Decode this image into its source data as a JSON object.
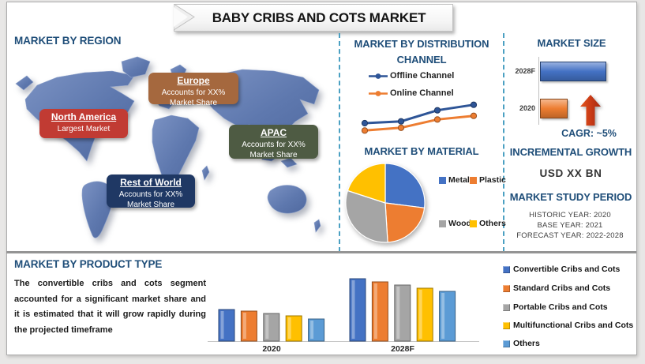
{
  "banner": {
    "title": "BABY CRIBS AND COTS MARKET"
  },
  "region": {
    "heading": "MARKET BY REGION",
    "callouts": [
      {
        "name": "North America",
        "line1": "Largest Market",
        "line2": "",
        "color": "#C13B33"
      },
      {
        "name": "Europe",
        "line1": "Accounts for XX%",
        "line2": "Market Share",
        "color": "#A5683E"
      },
      {
        "name": "APAC",
        "line1": "Accounts for XX%",
        "line2": "Market Share",
        "color": "#4E5B43"
      },
      {
        "name": "Rest of World",
        "line1": "Accounts for XX%",
        "line2": "Market Share",
        "color": "#1F3864"
      }
    ]
  },
  "sections": {
    "distribution_heading": "MARKET BY DISTRIBUTION CHANNEL",
    "material_heading": "MARKET BY MATERIAL",
    "market_size_heading": "MARKET SIZE",
    "product_type_heading": "MARKET BY PRODUCT TYPE"
  },
  "market_size": {
    "cagr": "CAGR: ~5%"
  },
  "growth": {
    "heading": "INCREMENTAL GROWTH",
    "value": "USD XX BN"
  },
  "study": {
    "heading": "MARKET STUDY PERIOD",
    "lines": [
      "HISTORIC YEAR: 2020",
      "BASE YEAR: 2021",
      "FORECAST YEAR: 2022-2028"
    ]
  },
  "product": {
    "paragraph": "The convertible cribs and cots segment accounted for a significant market share and it is estimated that it will grow rapidly during the projected timeframe"
  },
  "chart_data": [
    {
      "id": "distribution-line",
      "type": "line",
      "title": "MARKET BY DISTRIBUTION CHANNEL",
      "x": [
        1,
        2,
        3,
        4
      ],
      "series": [
        {
          "name": "Offline Channel",
          "color": "#2E5597",
          "values": [
            3.0,
            3.1,
            3.7,
            4.0
          ]
        },
        {
          "name": "Online Channel",
          "color": "#ED7D31",
          "values": [
            2.6,
            2.75,
            3.2,
            3.4
          ]
        }
      ],
      "legend_position": "top-left",
      "grid": false,
      "note": "Axes unlabeled in source; values are relative estimates showing both channels rising, offline above online"
    },
    {
      "id": "material-pie",
      "type": "pie",
      "title": "MARKET BY MATERIAL",
      "labels": [
        "Metal",
        "Plastic",
        "Wood",
        "Others"
      ],
      "values": [
        27,
        22,
        31,
        20
      ],
      "colors": [
        "#4472C4",
        "#ED7D31",
        "#A5A5A5",
        "#FFC000"
      ],
      "legend_position": "right",
      "note": "No data labels shown; percentages estimated from slice angles"
    },
    {
      "id": "market-size-bars",
      "type": "bar",
      "title": "MARKET SIZE",
      "orientation": "horizontal",
      "categories": [
        "2028F",
        "2020"
      ],
      "values": [
        100,
        40
      ],
      "colors": [
        "#4472C4",
        "#ED7D31"
      ],
      "note": "No axis values shown; bar lengths are relative estimates"
    },
    {
      "id": "product-type-bars",
      "type": "bar",
      "title": "MARKET BY PRODUCT TYPE",
      "categories": [
        "2020",
        "2028F"
      ],
      "series": [
        {
          "name": "Convertible Cribs and Cots",
          "color": "#4472C4",
          "values": [
            40,
            79
          ]
        },
        {
          "name": "Standard Cribs and Cots",
          "color": "#ED7D31",
          "values": [
            38,
            75
          ]
        },
        {
          "name": "Portable Cribs and Cots",
          "color": "#A5A5A5",
          "values": [
            35,
            71
          ]
        },
        {
          "name": "Multifunctional Cribs and Cots",
          "color": "#FFC000",
          "values": [
            32,
            67
          ]
        },
        {
          "name": "Others",
          "color": "#5B9BD5",
          "values": [
            28,
            63
          ]
        }
      ],
      "legend_position": "right",
      "grid": false,
      "note": "Y-axis unlabeled; values are relative estimated heights"
    }
  ]
}
